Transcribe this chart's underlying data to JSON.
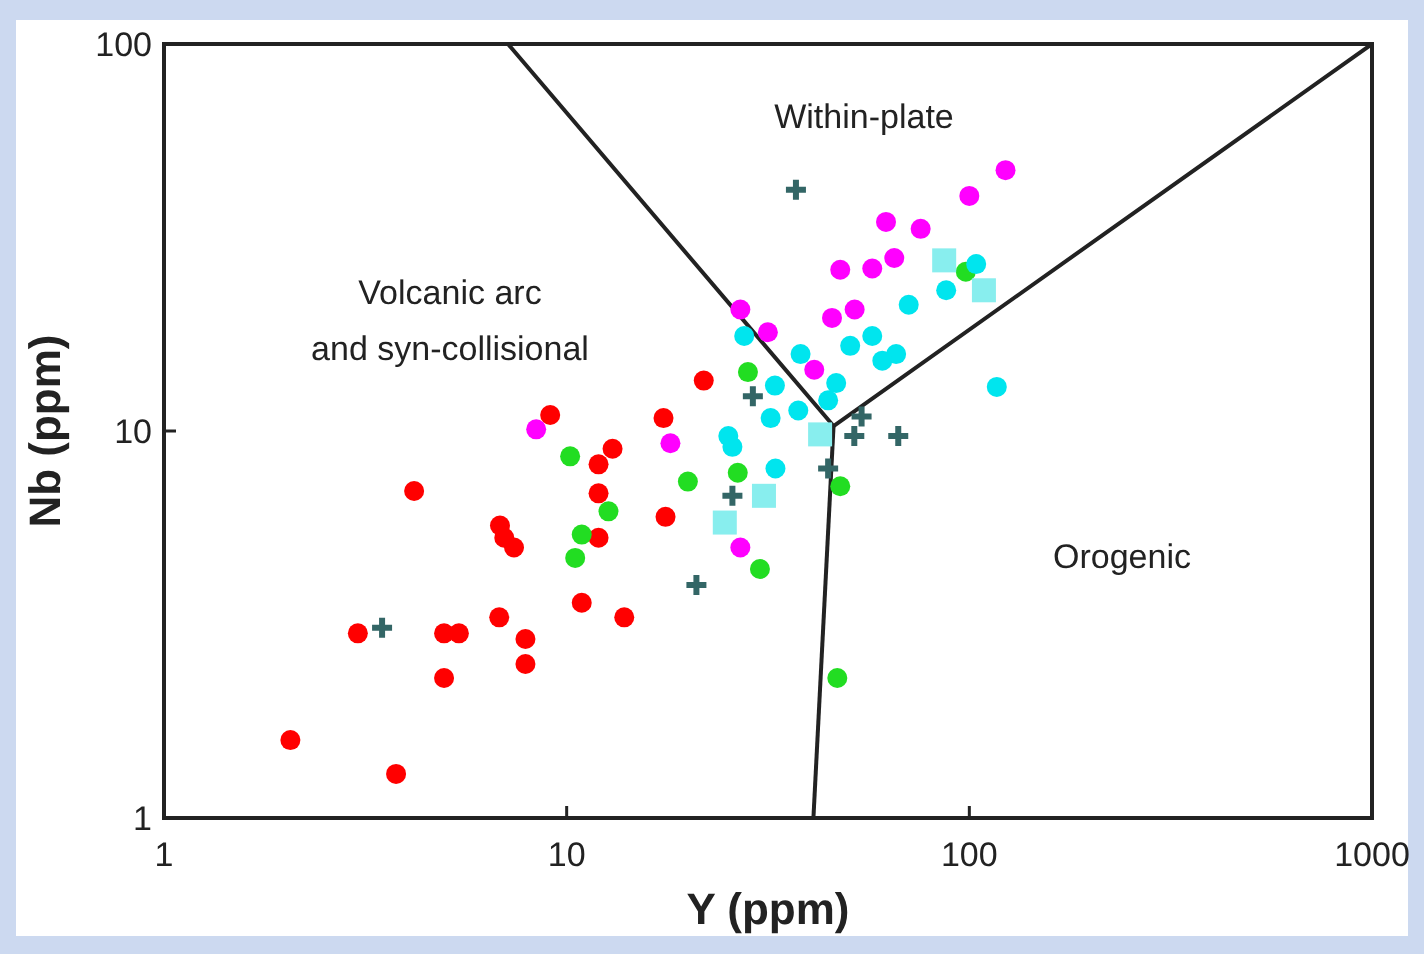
{
  "chart_data": {
    "type": "scatter",
    "xlabel": "Y (ppm)",
    "ylabel": "Nb (ppm)",
    "log": "xy",
    "grid": false,
    "xlim": [
      1,
      1000
    ],
    "ylim": [
      1,
      100
    ],
    "xticks": [
      1,
      10,
      100,
      1000
    ],
    "yticks": [
      1,
      10,
      100
    ],
    "series": [
      {
        "type": "line",
        "color": "#222222",
        "x": [
          7.15,
          46,
          1000
        ],
        "values": [
          100,
          10.3,
          100
        ]
      },
      {
        "type": "line",
        "color": "#222222",
        "x": [
          46,
          41
        ],
        "values": [
          10.3,
          1
        ]
      },
      {
        "color": "#ff0000",
        "marker": "circle",
        "x": [
          2.06,
          3.77,
          4.18,
          3.03,
          4.96,
          5.4,
          4.96,
          6.83,
          7.0,
          7.4,
          6.8,
          7.9,
          7.9,
          9.1,
          12.0,
          13.0,
          12.0,
          12.0,
          10.9,
          13.9,
          17.4,
          17.6,
          21.9
        ],
        "values": [
          1.59,
          1.3,
          7.0,
          3.0,
          3.0,
          3.0,
          2.3,
          5.7,
          5.3,
          5.0,
          3.3,
          2.9,
          2.5,
          11.0,
          8.2,
          9.0,
          6.9,
          5.3,
          3.6,
          3.3,
          10.8,
          6.0,
          13.5
        ]
      },
      {
        "color": "#22dd22",
        "marker": "circle",
        "x": [
          10.2,
          10.9,
          10.5,
          12.7,
          20.0,
          28.2,
          30.2,
          47.8,
          47,
          98,
          26.6
        ],
        "values": [
          8.6,
          5.4,
          4.7,
          6.2,
          7.4,
          14.2,
          4.4,
          7.2,
          2.3,
          25.8,
          7.8
        ]
      },
      {
        "color": "#336666",
        "marker": "cross",
        "x": [
          3.48,
          37.1,
          21,
          51.8,
          66.6,
          54,
          44.6,
          25.8,
          29
        ],
        "values": [
          3.1,
          42,
          4.0,
          9.7,
          9.7,
          10.9,
          8.0,
          6.8,
          12.3
        ]
      },
      {
        "color": "#ff00ff",
        "marker": "circle",
        "x": [
          8.4,
          27.0,
          31.6,
          27.0,
          18.1,
          41.2,
          45.6,
          51.9,
          47.8,
          62.1,
          65.1,
          57.4,
          75.7,
          100,
          123
        ],
        "values": [
          10.1,
          20.6,
          18.0,
          5.0,
          9.3,
          14.4,
          19.6,
          20.6,
          26.1,
          34.7,
          28.0,
          26.3,
          33.3,
          40.5,
          47.2
        ]
      },
      {
        "color": "#00e5ee",
        "marker": "circle",
        "x": [
          27.6,
          32.9,
          32.1,
          33,
          38.1,
          87.6,
          37.6,
          25.2,
          25.8,
          46.7,
          50.6,
          57.4,
          104,
          44.6,
          117,
          70.7,
          65.8,
          60.8
        ],
        "values": [
          17.6,
          13.1,
          10.8,
          8.0,
          15.8,
          23.1,
          11.3,
          9.7,
          9.1,
          13.3,
          16.6,
          17.6,
          27.0,
          12.0,
          13.0,
          21.2,
          15.8,
          15.2
        ]
      },
      {
        "color": "#88eeee",
        "marker": "square",
        "x": [
          30.9,
          24.7,
          42.6,
          86.6,
          108.7
        ],
        "values": [
          6.8,
          5.8,
          9.8,
          27.6,
          23.1
        ]
      }
    ],
    "annotations": [
      "Within-plate",
      "Volcanic arc",
      "and syn-collisional",
      "Orogenic"
    ]
  }
}
